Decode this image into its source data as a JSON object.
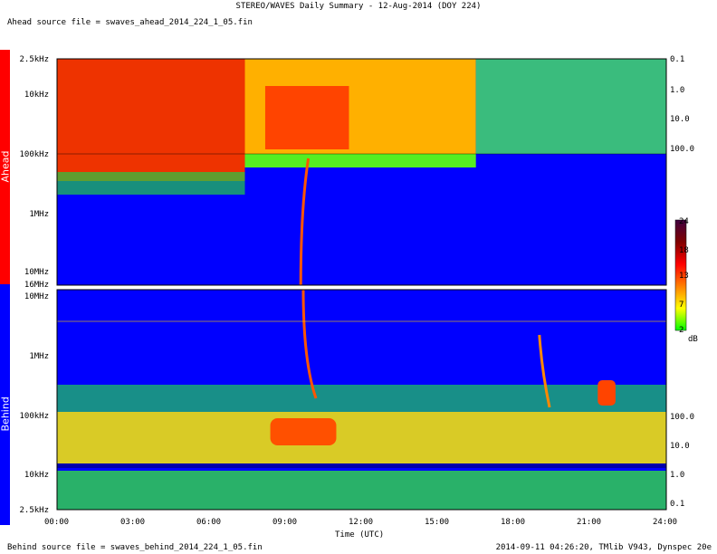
{
  "header": {
    "title": "STEREO/WAVES Daily Summary - 12-Aug-2014 (DOY 224)",
    "ahead_source": "Ahead source file = swaves_ahead_2014_224_1_05.fin",
    "behind_source": "Behind source file = swaves_behind_2014_224_1_05.fin",
    "footer": "2014-09-11 04:26:20, TMlib V943, Dynspec 20e"
  },
  "panels": {
    "ahead_label": "Ahead",
    "behind_label": "Behind",
    "ahead_color": "#ff0000",
    "behind_color": "#0000ff"
  },
  "chart_data": {
    "type": "heatmap",
    "xlabel": "Time (UTC)",
    "x_ticks": [
      "00:00",
      "03:00",
      "06:00",
      "09:00",
      "12:00",
      "15:00",
      "18:00",
      "21:00",
      "24:00"
    ],
    "xlim": [
      "00:00",
      "24:00"
    ],
    "ahead": {
      "y_ticks_left": [
        "2.5kHz",
        "10kHz",
        "100kHz",
        "1MHz",
        "10MHz",
        "16MHz"
      ],
      "y_ticks_right": [
        "0.1",
        "1.0",
        "10.0",
        "100.0"
      ],
      "ylim": [
        "2.5kHz",
        "16MHz"
      ],
      "scale": "log"
    },
    "behind": {
      "y_ticks_left": [
        "10MHz",
        "1MHz",
        "100kHz",
        "10kHz",
        "2.5kHz"
      ],
      "y_ticks_right": [
        "100.0",
        "10.0",
        "1.0",
        "0.1"
      ],
      "ylim": [
        "2.5kHz",
        "16MHz"
      ],
      "scale": "log"
    },
    "colorbar": {
      "ticks": [
        "24",
        "18",
        "13",
        "7",
        "2"
      ],
      "unit": "dB",
      "range": [
        2,
        24
      ],
      "colors": [
        "#00ff00",
        "#ffff00",
        "#ff8000",
        "#ff0000",
        "#800000",
        "#400040"
      ]
    },
    "features": [
      {
        "panel": "ahead",
        "time": "09:50",
        "label": "type III burst"
      },
      {
        "panel": "behind",
        "time": "09:50",
        "label": "type III burst"
      },
      {
        "panel": "behind",
        "time": "19:10",
        "label": "type III burst"
      },
      {
        "panel": "behind",
        "time": "21:20",
        "label": "type III burst"
      }
    ]
  }
}
